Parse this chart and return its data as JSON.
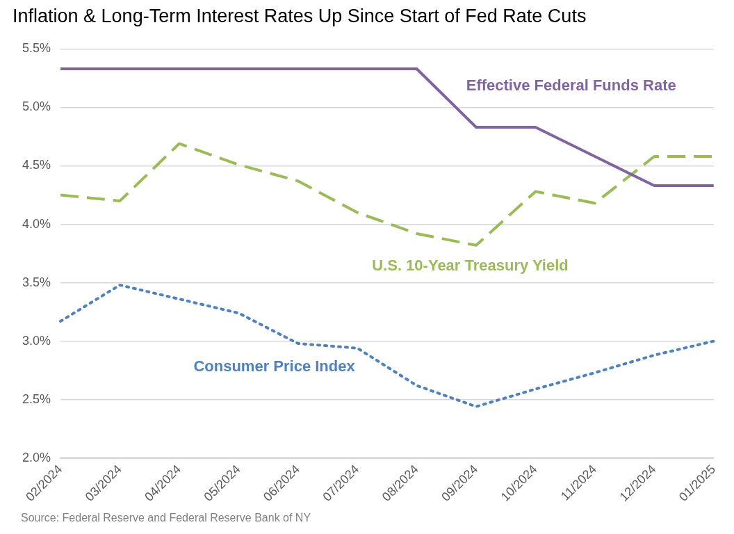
{
  "chart_data": {
    "type": "line",
    "title": "Inflation & Long-Term Interest Rates Up Since Start of Fed Rate Cuts",
    "categories": [
      "02/2024",
      "03/2024",
      "04/2024",
      "05/2024",
      "06/2024",
      "07/2024",
      "08/2024",
      "09/2024",
      "10/2024",
      "11/2024",
      "12/2024",
      "01/2025"
    ],
    "series": [
      {
        "name": "Effective Federal Funds Rate",
        "color": "#8064a2",
        "line_style": "solid",
        "values": [
          5.33,
          5.33,
          5.33,
          5.33,
          5.33,
          5.33,
          5.33,
          4.83,
          4.83,
          4.58,
          4.33,
          4.33
        ]
      },
      {
        "name": "U.S. 10-Year Treasury Yield",
        "color": "#9bbb59",
        "line_style": "dashed",
        "values": [
          4.25,
          4.2,
          4.69,
          4.51,
          4.37,
          4.1,
          3.92,
          3.82,
          4.28,
          4.18,
          4.58,
          4.58
        ]
      },
      {
        "name": "Consumer Price Index",
        "color": "#4f81bd",
        "line_style": "dotted",
        "values": [
          3.17,
          3.48,
          3.36,
          3.24,
          2.98,
          2.94,
          2.62,
          2.44,
          2.59,
          2.73,
          2.88,
          3.0
        ]
      }
    ],
    "ylim": [
      2,
      5.5
    ],
    "yticks": [
      {
        "value": 2,
        "label": "2.0%"
      },
      {
        "value": 2.5,
        "label": "2.5%"
      },
      {
        "value": 3,
        "label": "3.0%"
      },
      {
        "value": 3.5,
        "label": "3.5%"
      },
      {
        "value": 4,
        "label": "4.0%"
      },
      {
        "value": 4.5,
        "label": "4.5%"
      },
      {
        "value": 5,
        "label": "5.0%"
      },
      {
        "value": 5.5,
        "label": "5.5%"
      }
    ],
    "grid": "y",
    "legend": false,
    "marker": "none",
    "annotations": [
      "Source: Federal Reserve and Federal Reserve Bank of NY"
    ]
  }
}
